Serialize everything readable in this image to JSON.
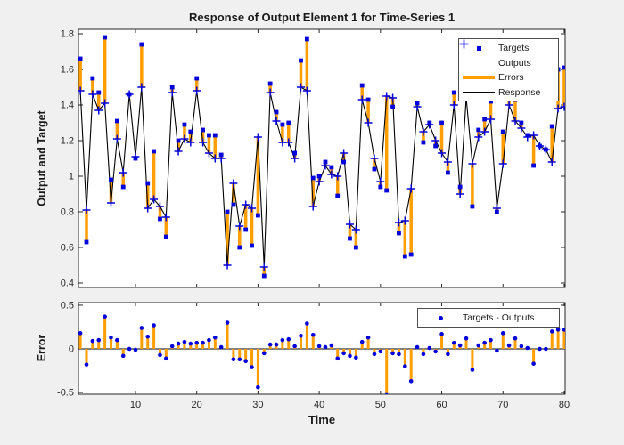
{
  "figure": {
    "title": "Response of Output Element 1 for Time-Series 1",
    "background_color": "#f0f0f0",
    "axes_background": "#ffffff",
    "top_axes": {
      "ylabel": "Output and Target",
      "ytick_labels": [
        "0.4",
        "0.6",
        "0.8",
        "1",
        "1.2",
        "1.4",
        "1.6",
        "1.8"
      ],
      "ytick_values": [
        0.4,
        0.6,
        0.8,
        1,
        1.2,
        1.4,
        1.6,
        1.8
      ]
    },
    "bottom_axes": {
      "ylabel": "Error",
      "xlabel": "Time",
      "ytick_labels": [
        "-0.5",
        "0",
        "0.5"
      ],
      "ytick_values": [
        -0.5,
        0,
        0.5
      ],
      "xtick_labels": [
        "10",
        "20",
        "30",
        "40",
        "50",
        "60",
        "70",
        "80"
      ],
      "xtick_values": [
        10,
        20,
        30,
        40,
        50,
        60,
        70,
        80
      ]
    }
  },
  "colors": {
    "axis": "#262626",
    "text": "#1a1a1a",
    "blue_marker": "#0000dd",
    "orange_error": "#ff9e00",
    "response_line": "#000000"
  },
  "legend_top": {
    "items": [
      {
        "label": "Targets",
        "marker": "blue-square"
      },
      {
        "label": "Outputs",
        "marker": "blue-plus"
      },
      {
        "label": "Errors",
        "marker": "orange-thick-line"
      },
      {
        "label": "Response",
        "marker": "black-thin-line"
      }
    ]
  },
  "legend_bottom": {
    "items": [
      {
        "label": "Targets - Outputs",
        "marker": "blue-dot"
      }
    ]
  },
  "chart_data": [
    {
      "type": "line",
      "title": "Response of Output Element 1 for Time-Series 1",
      "xlabel": "Time",
      "ylabel": "Output and Target",
      "xlim": [
        1,
        80
      ],
      "ylim": [
        0.4,
        1.8
      ],
      "grid": false,
      "legend_position": "top-right",
      "x": [
        1,
        2,
        3,
        4,
        5,
        6,
        7,
        8,
        9,
        10,
        11,
        12,
        13,
        14,
        15,
        16,
        17,
        18,
        19,
        20,
        21,
        22,
        23,
        24,
        25,
        26,
        27,
        28,
        29,
        30,
        31,
        32,
        33,
        34,
        35,
        36,
        37,
        38,
        39,
        40,
        41,
        42,
        43,
        44,
        45,
        46,
        47,
        48,
        49,
        50,
        51,
        52,
        53,
        54,
        55,
        56,
        57,
        58,
        59,
        60,
        61,
        62,
        63,
        64,
        65,
        66,
        67,
        68,
        69,
        70,
        71,
        72,
        73,
        74,
        75,
        76,
        77,
        78,
        79,
        80
      ],
      "series": [
        {
          "name": "Targets",
          "style": "scatter-square",
          "color": "#0000dd",
          "values": [
            1.66,
            0.63,
            1.55,
            1.47,
            1.78,
            0.98,
            1.31,
            0.94,
            1.46,
            1.1,
            1.74,
            0.96,
            1.14,
            0.76,
            0.66,
            1.5,
            1.2,
            1.29,
            1.25,
            1.55,
            1.26,
            1.23,
            1.23,
            1.12,
            0.8,
            0.84,
            0.6,
            0.7,
            0.61,
            0.78,
            0.44,
            1.52,
            1.36,
            1.29,
            1.3,
            1.13,
            1.65,
            1.77,
            0.99,
            1.0,
            1.08,
            1.05,
            0.89,
            1.08,
            0.65,
            0.6,
            1.51,
            1.43,
            1.04,
            0.94,
            0.92,
            1.39,
            0.68,
            0.55,
            0.56,
            1.41,
            1.19,
            1.3,
            1.17,
            1.3,
            1.02,
            1.47,
            0.94,
            1.56,
            0.83,
            1.26,
            1.32,
            1.42,
            0.8,
            1.25,
            1.44,
            1.43,
            1.3,
            1.23,
            1.06,
            1.17,
            1.15,
            1.28,
            1.6,
            1.61
          ]
        },
        {
          "name": "Outputs",
          "style": "scatter-plus",
          "color": "#0000dd",
          "values": [
            1.48,
            0.81,
            1.46,
            1.37,
            1.41,
            0.85,
            1.21,
            1.02,
            1.46,
            1.11,
            1.5,
            0.82,
            0.87,
            0.83,
            0.77,
            1.47,
            1.14,
            1.21,
            1.19,
            1.48,
            1.19,
            1.13,
            1.1,
            1.1,
            0.5,
            0.96,
            0.72,
            0.84,
            0.82,
            1.22,
            0.49,
            1.47,
            1.31,
            1.19,
            1.19,
            1.1,
            1.5,
            1.48,
            0.83,
            0.97,
            1.06,
            1.01,
            1.0,
            1.13,
            0.73,
            0.7,
            1.43,
            1.3,
            1.1,
            0.97,
            1.45,
            1.44,
            0.74,
            0.75,
            0.93,
            1.39,
            1.25,
            1.29,
            1.2,
            1.13,
            1.08,
            1.4,
            0.9,
            1.44,
            1.07,
            1.22,
            1.25,
            1.32,
            0.82,
            1.07,
            1.4,
            1.31,
            1.27,
            1.22,
            1.23,
            1.17,
            1.15,
            1.08,
            1.38,
            1.39
          ]
        },
        {
          "name": "Errors",
          "style": "vertical-error-bars",
          "color": "#ff9e00",
          "definition": "Targets minus Outputs, drawn as vertical bars between the two markers"
        },
        {
          "name": "Response",
          "style": "line",
          "color": "#000000",
          "definition": "line through the Outputs values"
        }
      ]
    },
    {
      "type": "stem",
      "xlabel": "Time",
      "ylabel": "Error",
      "xlim": [
        1,
        80
      ],
      "ylim": [
        -0.5,
        0.5
      ],
      "grid": false,
      "legend_position": "top-right",
      "series": [
        {
          "name": "Targets - Outputs",
          "style": "stem",
          "stem_color": "#ff9e00",
          "marker_color": "#0000dd",
          "definition": "Targets minus Outputs from the top axes"
        }
      ]
    }
  ]
}
